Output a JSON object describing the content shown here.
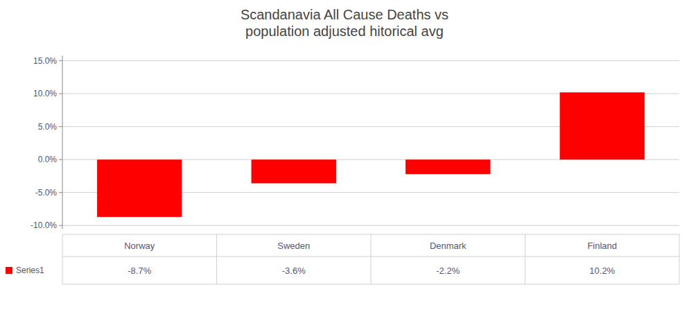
{
  "chart_data": {
    "type": "bar",
    "title": "Scandanavia All Cause Deaths vs\npopulation adjusted hitorical avg",
    "categories": [
      "Norway",
      "Sweden",
      "Denmark",
      "Finland"
    ],
    "series": [
      {
        "name": "Series1",
        "color": "#FF0000",
        "values": [
          -0.087,
          -0.036,
          -0.022,
          0.102
        ],
        "value_labels": [
          "-8.7%",
          "-3.6%",
          "-2.2%",
          "10.2%"
        ]
      }
    ],
    "ylim": [
      -0.105,
      0.158
    ],
    "yticks": [
      {
        "value": -0.1,
        "label": "-10.0%"
      },
      {
        "value": -0.05,
        "label": "-5.0%"
      },
      {
        "value": 0.0,
        "label": "0.0%"
      },
      {
        "value": 0.05,
        "label": "5.0%"
      },
      {
        "value": 0.1,
        "label": "10.0%"
      },
      {
        "value": 0.15,
        "label": "15.0%"
      }
    ],
    "grid": true,
    "data_labels": true
  }
}
